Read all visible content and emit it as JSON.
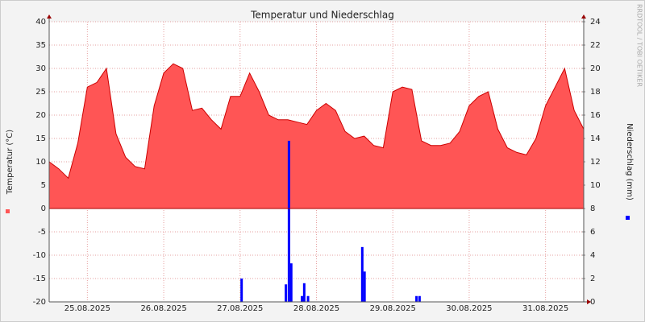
{
  "chart_data": {
    "type": "area-bar",
    "title": "Temperatur und Niederschlag",
    "ylabel": "Temperatur (°C)",
    "y2label": "Niederschlag (mm)",
    "watermark": "RRDTOOL / TOBI OETIKER",
    "xlim": [
      0,
      7
    ],
    "xticks": [
      {
        "value": 0.5,
        "label": "25.08.2025"
      },
      {
        "value": 1.5,
        "label": "26.08.2025"
      },
      {
        "value": 2.5,
        "label": "27.08.2025"
      },
      {
        "value": 3.5,
        "label": "28.08.2025"
      },
      {
        "value": 4.5,
        "label": "29.08.2025"
      },
      {
        "value": 5.5,
        "label": "30.08.2025"
      },
      {
        "value": 6.5,
        "label": "31.08.2025"
      }
    ],
    "ylim": [
      -20,
      40
    ],
    "yticks": [
      -20,
      -15,
      -10,
      -5,
      0,
      5,
      10,
      15,
      20,
      25,
      30,
      35,
      40
    ],
    "y2lim": [
      0,
      24
    ],
    "y2ticks": [
      0,
      2,
      4,
      6,
      8,
      10,
      12,
      14,
      16,
      18,
      20,
      22,
      24
    ],
    "grid": true,
    "series": [
      {
        "type": "area",
        "color": "#ff5555",
        "x": [
          0,
          0.125,
          0.25,
          0.375,
          0.5,
          0.625,
          0.75,
          0.875,
          1,
          1.125,
          1.25,
          1.375,
          1.5,
          1.625,
          1.75,
          1.875,
          2,
          2.125,
          2.25,
          2.375,
          2.5,
          2.625,
          2.75,
          2.875,
          3,
          3.125,
          3.25,
          3.375,
          3.5,
          3.625,
          3.75,
          3.875,
          4,
          4.125,
          4.25,
          4.375,
          4.5,
          4.625,
          4.75,
          4.875,
          5,
          5.125,
          5.25,
          5.375,
          5.5,
          5.625,
          5.75,
          5.875,
          6,
          6.125,
          6.25,
          6.375,
          6.5,
          6.625,
          6.75,
          6.875,
          7
        ],
        "values": [
          10,
          8.5,
          6.5,
          14,
          26,
          27,
          30,
          16,
          11,
          9,
          8.5,
          22,
          29,
          31,
          30,
          21,
          21.5,
          19,
          17,
          24,
          24,
          29,
          25,
          20,
          19,
          19,
          18.5,
          18,
          21,
          22.5,
          21,
          16.5,
          15,
          15.5,
          13.5,
          13,
          25,
          26,
          25.5,
          14.5,
          13.5,
          13.5,
          14,
          16.5,
          22,
          24,
          25,
          17,
          13,
          12,
          11.5,
          15,
          22,
          26,
          30,
          21,
          17
        ]
      },
      {
        "type": "bar",
        "axis": "y2",
        "color": "#0000ff",
        "x": [
          2.52,
          3.1,
          3.14,
          3.17,
          3.31,
          3.34,
          3.39,
          4.1,
          4.13,
          4.81,
          4.85
        ],
        "values": [
          2,
          1.5,
          13.8,
          3.3,
          0.5,
          1.6,
          0.5,
          4.7,
          2.6,
          0.5,
          0.5
        ]
      }
    ]
  }
}
